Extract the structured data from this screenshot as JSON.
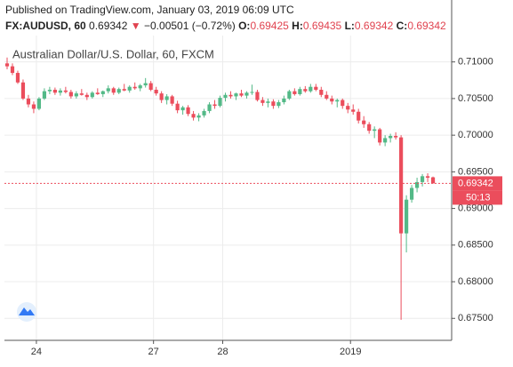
{
  "chart_data": {
    "type": "candlestick",
    "published": "Published on TradingView.com, January 03, 2019 06:09 UTC",
    "symbol": "FX:AUDUSD, 60",
    "down_arrow": "▼",
    "change": "−0.00501 (−0.72%)",
    "o_label": "O:",
    "h_label": "H:",
    "l_label": "L:",
    "c_label": "C:",
    "title": "Australian Dollar/U.S. Dollar, 60, FXCM",
    "countdown": "50:13",
    "up_color": "#53b987",
    "down_color": "#eb4d5c",
    "open": [
      0.7098,
      0.7094,
      0.7085,
      0.7072,
      0.705,
      0.7042,
      0.7036,
      0.705,
      0.706,
      0.7062,
      0.7058,
      0.7061,
      0.7059,
      0.7053,
      0.7057,
      0.7055,
      0.7052,
      0.7058,
      0.7056,
      0.706,
      0.7064,
      0.7058,
      0.7063,
      0.7061,
      0.7066,
      0.7064,
      0.7068,
      0.7071,
      0.7062,
      0.7057,
      0.7048,
      0.7053,
      0.7043,
      0.7034,
      0.7038,
      0.7029,
      0.7024,
      0.7027,
      0.7033,
      0.7042,
      0.704,
      0.7051,
      0.7055,
      0.7053,
      0.7057,
      0.7054,
      0.7058,
      0.7059,
      0.7048,
      0.7044,
      0.7046,
      0.704,
      0.7045,
      0.705,
      0.706,
      0.7056,
      0.7063,
      0.706,
      0.7066,
      0.7062,
      0.7055,
      0.705,
      0.7046,
      0.7048,
      0.704,
      0.7035,
      0.7032,
      0.702,
      0.7015,
      0.7006,
      0.7008,
      0.699,
      0.6996,
      0.6999,
      0.6997,
      0.6866,
      0.6912,
      0.6928,
      0.6936,
      0.6944,
      0.69425
    ],
    "high": [
      0.7106,
      0.7098,
      0.7088,
      0.7076,
      0.7055,
      0.7046,
      0.7052,
      0.7064,
      0.7066,
      0.7065,
      0.7064,
      0.7066,
      0.7062,
      0.706,
      0.7063,
      0.7058,
      0.706,
      0.7064,
      0.7061,
      0.7068,
      0.7066,
      0.7065,
      0.707,
      0.7068,
      0.7072,
      0.707,
      0.7078,
      0.7074,
      0.7066,
      0.706,
      0.7056,
      0.7055,
      0.7047,
      0.704,
      0.7041,
      0.7033,
      0.703,
      0.7036,
      0.7045,
      0.7048,
      0.7054,
      0.7058,
      0.706,
      0.7058,
      0.7062,
      0.706,
      0.7069,
      0.7062,
      0.7052,
      0.705,
      0.7049,
      0.7048,
      0.7054,
      0.7062,
      0.7064,
      0.7066,
      0.7067,
      0.707,
      0.707,
      0.7066,
      0.706,
      0.7054,
      0.705,
      0.705,
      0.7044,
      0.7042,
      0.7036,
      0.7026,
      0.7018,
      0.7012,
      0.701,
      0.7,
      0.7002,
      0.7004,
      0.7,
      0.6918,
      0.6932,
      0.6942,
      0.6947,
      0.6948,
      0.69435
    ],
    "low": [
      0.709,
      0.7082,
      0.707,
      0.7048,
      0.7038,
      0.703,
      0.7034,
      0.7048,
      0.7056,
      0.7055,
      0.7054,
      0.7057,
      0.705,
      0.705,
      0.7054,
      0.7048,
      0.705,
      0.7055,
      0.7052,
      0.7057,
      0.7055,
      0.7056,
      0.706,
      0.7058,
      0.7062,
      0.706,
      0.7065,
      0.706,
      0.7054,
      0.7044,
      0.7042,
      0.704,
      0.703,
      0.7028,
      0.7026,
      0.702,
      0.7019,
      0.7024,
      0.703,
      0.7036,
      0.7038,
      0.7046,
      0.705,
      0.7048,
      0.7052,
      0.705,
      0.7055,
      0.7046,
      0.704,
      0.7038,
      0.7036,
      0.7037,
      0.7042,
      0.7048,
      0.7054,
      0.7054,
      0.7058,
      0.7058,
      0.706,
      0.7052,
      0.7048,
      0.7042,
      0.7038,
      0.7036,
      0.703,
      0.7028,
      0.7016,
      0.701,
      0.7002,
      0.6996,
      0.6986,
      0.6985,
      0.699,
      0.6994,
      0.6748,
      0.684,
      0.6908,
      0.6922,
      0.693,
      0.6936,
      0.69342
    ],
    "close": [
      0.7094,
      0.7085,
      0.7072,
      0.705,
      0.7042,
      0.7036,
      0.705,
      0.706,
      0.7062,
      0.7058,
      0.7061,
      0.7059,
      0.7053,
      0.7057,
      0.7055,
      0.7052,
      0.7058,
      0.7056,
      0.706,
      0.7064,
      0.7058,
      0.7063,
      0.7061,
      0.7066,
      0.7064,
      0.7068,
      0.7071,
      0.7062,
      0.7057,
      0.7048,
      0.7053,
      0.7043,
      0.7034,
      0.7038,
      0.7029,
      0.7024,
      0.7027,
      0.7033,
      0.7042,
      0.704,
      0.7051,
      0.7055,
      0.7053,
      0.7057,
      0.7054,
      0.7058,
      0.7059,
      0.7048,
      0.7044,
      0.7046,
      0.704,
      0.7045,
      0.705,
      0.706,
      0.7056,
      0.7063,
      0.706,
      0.7066,
      0.7062,
      0.7055,
      0.705,
      0.7046,
      0.7048,
      0.704,
      0.7035,
      0.7032,
      0.702,
      0.7015,
      0.7006,
      0.7008,
      0.699,
      0.6996,
      0.6999,
      0.6997,
      0.6866,
      0.6912,
      0.6928,
      0.6936,
      0.6944,
      0.6942,
      0.69342
    ],
    "xlim": [
      0,
      84
    ],
    "xticks": [
      {
        "value": 6,
        "label": "24"
      },
      {
        "value": 28,
        "label": "27"
      },
      {
        "value": 41,
        "label": "28"
      },
      {
        "value": 65,
        "label": "2019"
      }
    ],
    "ylim": [
      0.672,
      0.7136
    ],
    "yticks": [
      {
        "value": 0.675,
        "label": "0.67500"
      },
      {
        "value": 0.68,
        "label": "0.68000"
      },
      {
        "value": 0.685,
        "label": "0.68500"
      },
      {
        "value": 0.69,
        "label": "0.69000"
      },
      {
        "value": 0.695,
        "label": "0.69500"
      },
      {
        "value": 0.7,
        "label": "0.70000"
      },
      {
        "value": 0.705,
        "label": "0.70500"
      },
      {
        "value": 0.71,
        "label": "0.71000"
      }
    ],
    "grid": true
  }
}
